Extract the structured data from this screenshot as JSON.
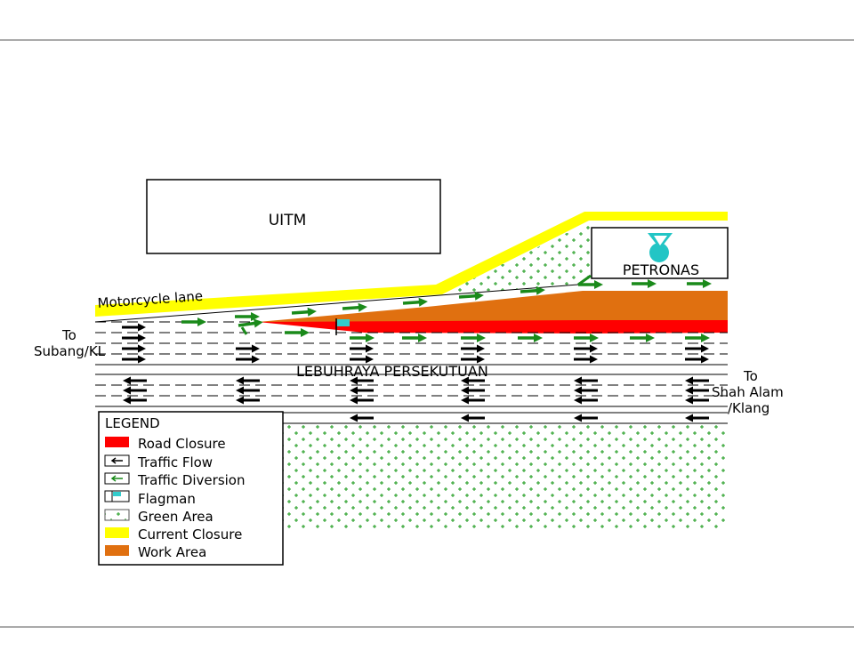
{
  "labels": {
    "uitm": "UITM",
    "petronas": "PETRONAS",
    "motorcycle_lane": "Motorcycle lane",
    "highway": "LEBUHRAYA PERSEKUTUAN",
    "to_left_1": "To",
    "to_left_2": "Subang/KL",
    "to_right_1": "To",
    "to_right_2": "Shah Alam",
    "to_right_3": "/Klang"
  },
  "legend": {
    "title": "LEGEND",
    "items": [
      {
        "label": "Road Closure",
        "color": "#ff0000",
        "icon": "red-swatch"
      },
      {
        "label": "Traffic Flow",
        "color": "#000000",
        "icon": "black-arrow-icon"
      },
      {
        "label": "Traffic Diversion",
        "color": "#1a8a1a",
        "icon": "green-arrow-icon"
      },
      {
        "label": "Flagman",
        "color": "#33cccc",
        "icon": "flag-icon"
      },
      {
        "label": "Green Area",
        "color": "#1a9a1a",
        "icon": "green-dots-swatch"
      },
      {
        "label": "Current Closure",
        "color": "#ffff00",
        "icon": "yellow-swatch"
      },
      {
        "label": "Work Area",
        "color": "#e07010",
        "icon": "orange-swatch"
      }
    ]
  },
  "colors": {
    "road_closure": "#ff0000",
    "work_area": "#e07010",
    "current_closure": "#ffff00",
    "traffic_diversion": "#1a8a1a",
    "flagman": "#33cccc",
    "petronas_logo": "#22c5c5"
  }
}
